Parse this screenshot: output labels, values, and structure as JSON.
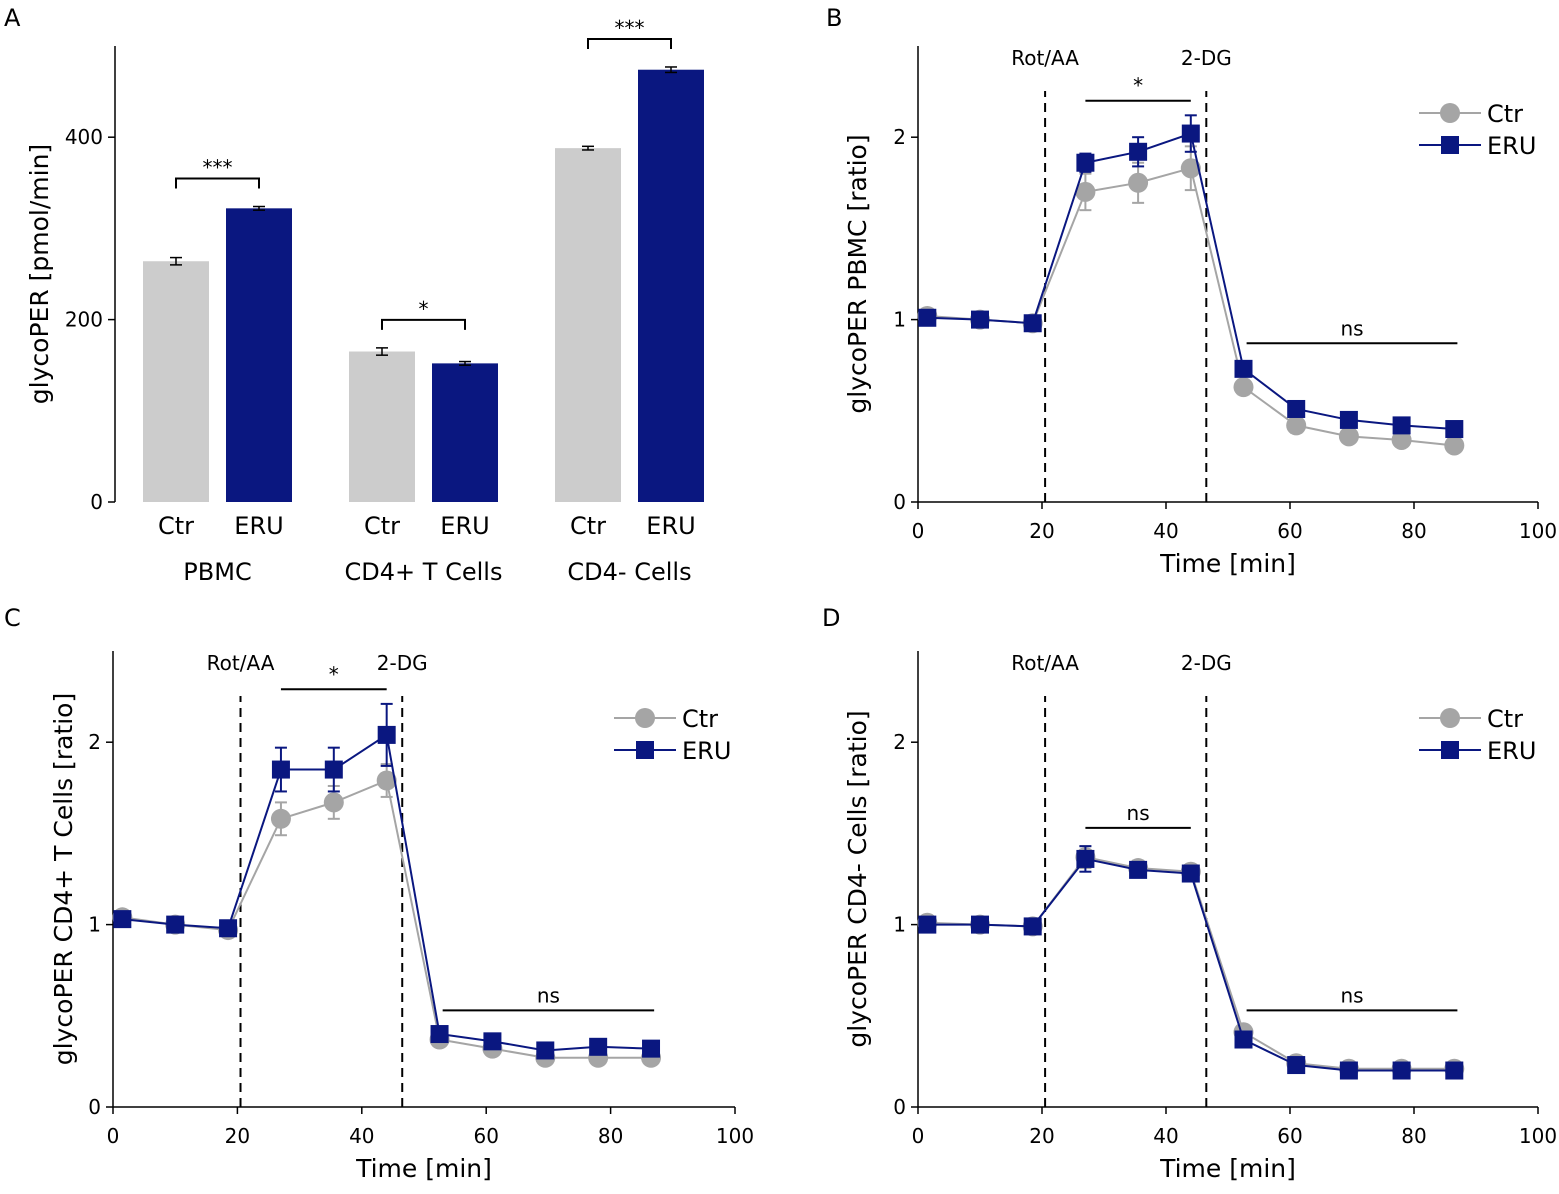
{
  "colors": {
    "ctr": "#a5a5a5",
    "eru": "#0a1780",
    "bar_ctr": "#cccccc",
    "bar_eru": "#0a1780"
  },
  "panels": [
    {
      "id": "A",
      "label": "A",
      "chart_data": {
        "type": "bar",
        "ylabel": "glycoPER [pmol/min]",
        "ylim": [
          0,
          500
        ],
        "yticks": [
          0,
          200,
          400
        ],
        "groups": [
          {
            "name": "PBMC",
            "bars": [
              {
                "label": "Ctr",
                "value": 264,
                "err": 4
              },
              {
                "label": "ERU",
                "value": 322,
                "err": 2
              }
            ],
            "sig": "***"
          },
          {
            "name": "CD4+ T Cells",
            "bars": [
              {
                "label": "Ctr",
                "value": 165,
                "err": 4
              },
              {
                "label": "ERU",
                "value": 152,
                "err": 2
              }
            ],
            "sig": "*"
          },
          {
            "name": "CD4- Cells",
            "bars": [
              {
                "label": "Ctr",
                "value": 388,
                "err": 2
              },
              {
                "label": "ERU",
                "value": 474,
                "err": 3
              }
            ],
            "sig": "***"
          }
        ]
      }
    },
    {
      "id": "B",
      "label": "B",
      "chart_data": {
        "type": "line",
        "ylabel": "glycoPER PBMC [ratio]",
        "xlabel": "Time [min]",
        "xlim": [
          0,
          100
        ],
        "ylim": [
          0,
          2.5
        ],
        "xticks": [
          0,
          20,
          40,
          60,
          80,
          100
        ],
        "yticks": [
          0,
          1,
          2
        ],
        "injections": [
          {
            "label": "Rot/AA",
            "x": 20.5
          },
          {
            "label": "2-DG",
            "x": 46.5
          }
        ],
        "brackets": [
          {
            "x1": 27,
            "x2": 44,
            "y": 2.2,
            "text": "*"
          },
          {
            "x1": 53,
            "x2": 87,
            "y": 0.87,
            "text": "ns"
          }
        ],
        "x": [
          1.5,
          10,
          18.5,
          27,
          35.5,
          44,
          52.5,
          61,
          69.5,
          78,
          86.5
        ],
        "series": [
          {
            "name": "Ctr",
            "values": [
              1.02,
              1.0,
              0.98,
              1.7,
              1.75,
              1.83,
              0.63,
              0.42,
              0.36,
              0.34,
              0.31
            ],
            "err": [
              0.03,
              0.02,
              0.03,
              0.1,
              0.11,
              0.12,
              0.04,
              0.04,
              0.03,
              0.02,
              0.02
            ]
          },
          {
            "name": "ERU",
            "values": [
              1.01,
              1.0,
              0.98,
              1.86,
              1.92,
              2.02,
              0.73,
              0.51,
              0.45,
              0.42,
              0.4
            ],
            "err": [
              0.03,
              0.02,
              0.02,
              0.05,
              0.08,
              0.1,
              0.04,
              0.03,
              0.03,
              0.02,
              0.02
            ]
          }
        ]
      }
    },
    {
      "id": "C",
      "label": "C",
      "chart_data": {
        "type": "line",
        "ylabel": "glycoPER CD4+ T Cells [ratio]",
        "xlabel": "Time [min]",
        "xlim": [
          0,
          100
        ],
        "ylim": [
          0,
          2.5
        ],
        "xticks": [
          0,
          20,
          40,
          60,
          80,
          100
        ],
        "yticks": [
          0,
          1,
          2
        ],
        "injections": [
          {
            "label": "Rot/AA",
            "x": 20.5
          },
          {
            "label": "2-DG",
            "x": 46.5
          }
        ],
        "brackets": [
          {
            "x1": 27,
            "x2": 44,
            "y": 2.29,
            "text": "*"
          },
          {
            "x1": 53,
            "x2": 87,
            "y": 0.53,
            "text": "ns"
          }
        ],
        "x": [
          1.5,
          10,
          18.5,
          27,
          35.5,
          44,
          52.5,
          61,
          69.5,
          78,
          86.5
        ],
        "series": [
          {
            "name": "Ctr",
            "values": [
              1.04,
              1.0,
              0.97,
              1.58,
              1.67,
              1.79,
              0.37,
              0.32,
              0.27,
              0.27,
              0.27
            ],
            "err": [
              0.03,
              0.03,
              0.03,
              0.09,
              0.09,
              0.09,
              0.03,
              0.03,
              0.02,
              0.02,
              0.02
            ]
          },
          {
            "name": "ERU",
            "values": [
              1.03,
              1.0,
              0.98,
              1.85,
              1.85,
              2.04,
              0.4,
              0.36,
              0.31,
              0.33,
              0.32
            ],
            "err": [
              0.03,
              0.03,
              0.03,
              0.12,
              0.12,
              0.17,
              0.03,
              0.03,
              0.03,
              0.03,
              0.03
            ]
          }
        ]
      }
    },
    {
      "id": "D",
      "label": "D",
      "chart_data": {
        "type": "line",
        "ylabel": "glycoPER CD4- Cells [ratio]",
        "xlabel": "Time [min]",
        "xlim": [
          0,
          100
        ],
        "ylim": [
          0,
          2.5
        ],
        "xticks": [
          0,
          20,
          40,
          60,
          80,
          100
        ],
        "yticks": [
          0,
          1,
          2
        ],
        "injections": [
          {
            "label": "Rot/AA",
            "x": 20.5
          },
          {
            "label": "2-DG",
            "x": 46.5
          }
        ],
        "brackets": [
          {
            "x1": 27,
            "x2": 44,
            "y": 1.53,
            "text": "ns"
          },
          {
            "x1": 53,
            "x2": 87,
            "y": 0.53,
            "text": "ns"
          }
        ],
        "x": [
          1.5,
          10,
          18.5,
          27,
          35.5,
          44,
          52.5,
          61,
          69.5,
          78,
          86.5
        ],
        "series": [
          {
            "name": "Ctr",
            "values": [
              1.01,
              1.0,
              0.99,
              1.37,
              1.31,
              1.29,
              0.41,
              0.24,
              0.21,
              0.21,
              0.21
            ],
            "err": [
              0.02,
              0.02,
              0.02,
              0.06,
              0.04,
              0.03,
              0.03,
              0.02,
              0.02,
              0.02,
              0.02
            ]
          },
          {
            "name": "ERU",
            "values": [
              1.0,
              1.0,
              0.99,
              1.36,
              1.3,
              1.28,
              0.37,
              0.23,
              0.2,
              0.2,
              0.2
            ],
            "err": [
              0.02,
              0.02,
              0.02,
              0.07,
              0.04,
              0.03,
              0.03,
              0.02,
              0.02,
              0.02,
              0.02
            ]
          }
        ]
      }
    }
  ]
}
